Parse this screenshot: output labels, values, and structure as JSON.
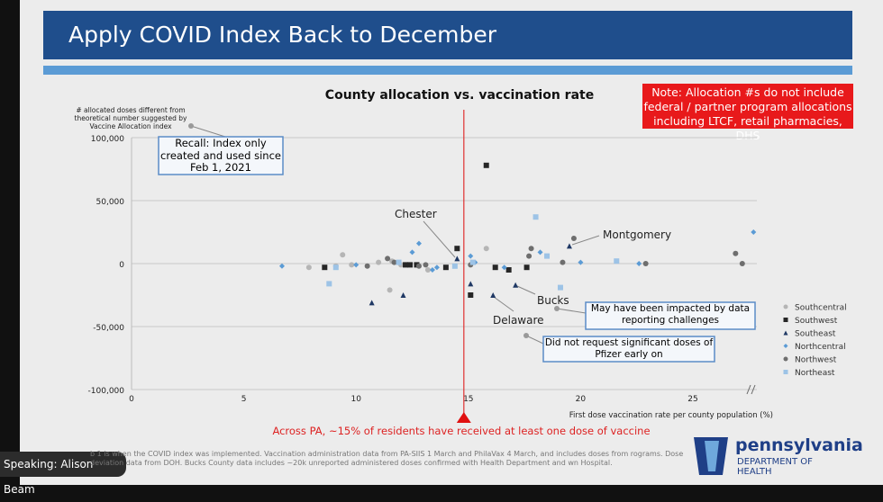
{
  "slide_title": "Apply COVID Index Back to December",
  "note": "Note: Allocation #s do not include federal / partner program allocations including LTCF, retail pharmacies, DHS",
  "speaker": "Speaking: Alison Beam",
  "footnote": "b 1 is when the COVID index was implemented. Vaccination administration data from PA-SIIS 1 March and PhilaVax 4 March, and includes doses from rograms. Dose deviation data from DOH. Bucks County data includes ~20k unreported administered doses confirmed with Health Department and wn Hospital.",
  "logo": {
    "name": "pennsylvania",
    "dept": "DEPARTMENT OF HEALTH"
  },
  "chart_data": {
    "type": "scatter",
    "title": "County allocation vs. vaccination rate",
    "ylabel": "# allocated doses different from theoretical number suggested by Vaccine Allocation index",
    "xlabel": "First dose vaccination rate per county population (%)",
    "xlim": [
      0,
      28
    ],
    "ylim": [
      -100000,
      100000
    ],
    "xticks": [
      "0",
      "5",
      "10",
      "15",
      "20",
      "25"
    ],
    "yticks": [
      "100,000",
      "50,000",
      "0",
      "-50,000",
      "-100,000"
    ],
    "grid": "horizontal",
    "legend": "right",
    "reference_line": {
      "x": 14.8,
      "color": "#e03030",
      "label": "Across PA, ~15% of residents have received at least one dose of vaccine"
    },
    "series": [
      {
        "name": "Southcentral",
        "marker": "circle",
        "color": "#b5b5b5",
        "points": [
          [
            7.9,
            -3000
          ],
          [
            9.4,
            7000
          ],
          [
            9.8,
            -1000
          ],
          [
            11,
            1000
          ],
          [
            11.5,
            -21000
          ],
          [
            11.6,
            2000
          ],
          [
            13.2,
            -5000
          ],
          [
            15.8,
            12000
          ],
          [
            9.1,
            -2000
          ],
          [
            12,
            -1000
          ]
        ]
      },
      {
        "name": "Southwest",
        "marker": "square",
        "color": "#262626",
        "points": [
          [
            8.6,
            -3000
          ],
          [
            12.4,
            -1000
          ],
          [
            12.7,
            -1000
          ],
          [
            14,
            -3000
          ],
          [
            14.5,
            12000
          ],
          [
            15.1,
            -25000
          ],
          [
            15.8,
            78000
          ],
          [
            16.2,
            -3000
          ],
          [
            16.8,
            -5000
          ],
          [
            17.6,
            -3000
          ],
          [
            12.2,
            -1000
          ]
        ]
      },
      {
        "name": "Southeast",
        "marker": "triangle",
        "color": "#1f3864",
        "points": [
          [
            10.7,
            -31000
          ],
          [
            12.1,
            -25000
          ],
          [
            14.5,
            4000
          ],
          [
            15.1,
            -16000
          ],
          [
            16.1,
            -25000
          ],
          [
            17.1,
            -17000
          ],
          [
            19.5,
            14000
          ]
        ]
      },
      {
        "name": "Northcentral",
        "marker": "diamond",
        "color": "#5b9bd5",
        "points": [
          [
            6.7,
            -2000
          ],
          [
            10,
            -1000
          ],
          [
            12.5,
            9000
          ],
          [
            12.8,
            16000
          ],
          [
            13.6,
            -3000
          ],
          [
            15.1,
            6000
          ],
          [
            15.3,
            1000
          ],
          [
            16.6,
            -3000
          ],
          [
            18.2,
            9000
          ],
          [
            20,
            1000
          ],
          [
            22.6,
            0
          ],
          [
            27.7,
            25000
          ],
          [
            13.4,
            -5000
          ]
        ]
      },
      {
        "name": "Northwest",
        "marker": "circle",
        "color": "#6e6e6e",
        "points": [
          [
            10.5,
            -2000
          ],
          [
            11.4,
            4000
          ],
          [
            11.7,
            1000
          ],
          [
            12.8,
            -2000
          ],
          [
            13.1,
            -1000
          ],
          [
            15.1,
            -1000
          ],
          [
            17.7,
            6000
          ],
          [
            17.8,
            12000
          ],
          [
            19.2,
            1000
          ],
          [
            19.7,
            20000
          ],
          [
            22.9,
            0
          ],
          [
            26.9,
            8000
          ],
          [
            27.2,
            0
          ]
        ]
      },
      {
        "name": "Northeast",
        "marker": "square",
        "color": "#9dc3e6",
        "points": [
          [
            8.8,
            -16000
          ],
          [
            9.1,
            -3000
          ],
          [
            11.9,
            1000
          ],
          [
            14.4,
            -2000
          ],
          [
            15.2,
            1000
          ],
          [
            18,
            37000
          ],
          [
            18.5,
            6000
          ],
          [
            19.1,
            -19000
          ],
          [
            21.6,
            2000
          ]
        ]
      }
    ],
    "annotations": {
      "recall": "Recall: Index only created and used since Feb 1, 2021",
      "chester": "Chester",
      "montgomery": "Montgomery",
      "bucks": "Bucks",
      "delaware": "Delaware",
      "bucks_note": "May have been impacted by data reporting challenges",
      "delaware_note": "Did not request significant doses of Pfizer early on"
    }
  }
}
